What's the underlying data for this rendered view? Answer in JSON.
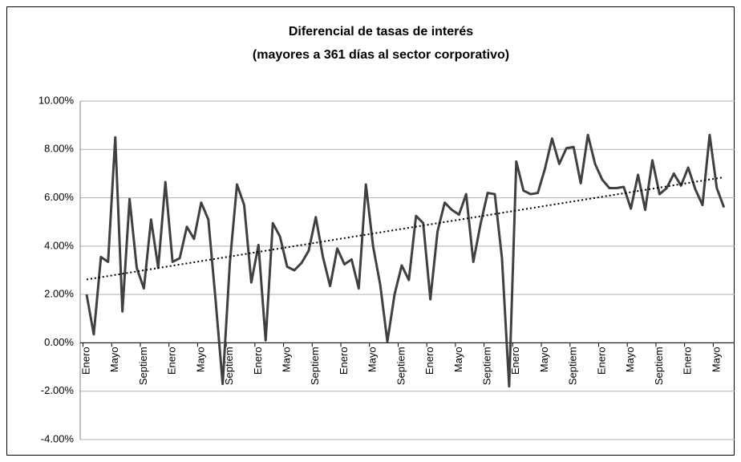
{
  "chart_data": {
    "type": "line",
    "title": "Diferencial de tasas de interés",
    "subtitle": "(mayores a 361 días al sector corporativo)",
    "categories": [
      "Enero",
      null,
      null,
      null,
      "Mayo",
      null,
      null,
      null,
      "Septiem",
      null,
      null,
      null,
      "Enero",
      null,
      null,
      null,
      "Mayo",
      null,
      null,
      null,
      "Septiem",
      null,
      null,
      null,
      "Enero",
      null,
      null,
      null,
      "Mayo",
      null,
      null,
      null,
      "Septiem",
      null,
      null,
      null,
      "Enero",
      null,
      null,
      null,
      "Mayo",
      null,
      null,
      null,
      "Septiem",
      null,
      null,
      null,
      "Enero",
      null,
      null,
      null,
      "Mayo",
      null,
      null,
      null,
      "Septiem",
      null,
      null,
      null,
      "Enero",
      null,
      null,
      null,
      "Mayo",
      null,
      null,
      null,
      "Septiem",
      null,
      null,
      null,
      "Enero",
      null,
      null,
      null,
      "Mayo",
      null,
      null,
      null,
      "Septiem",
      null,
      null,
      null,
      "Enero",
      null,
      null,
      null,
      "Mayo",
      null
    ],
    "values": [
      2.0,
      0.35,
      3.55,
      3.35,
      8.5,
      1.3,
      5.95,
      3.1,
      2.25,
      5.1,
      3.1,
      6.65,
      3.35,
      3.5,
      4.8,
      4.3,
      5.8,
      5.1,
      1.8,
      -1.7,
      3.3,
      6.55,
      5.7,
      2.5,
      4.05,
      0.1,
      4.95,
      4.4,
      3.15,
      3.0,
      3.3,
      3.8,
      5.2,
      3.55,
      2.35,
      3.9,
      3.25,
      3.45,
      2.25,
      6.55,
      4.0,
      2.4,
      0.05,
      2.0,
      3.2,
      2.6,
      5.25,
      4.95,
      1.8,
      4.6,
      5.8,
      5.5,
      5.3,
      6.15,
      3.35,
      4.9,
      6.2,
      6.15,
      3.5,
      -1.8,
      7.5,
      6.3,
      6.15,
      6.2,
      7.2,
      8.45,
      7.4,
      8.05,
      8.1,
      6.6,
      8.6,
      7.4,
      6.75,
      6.4,
      6.4,
      6.45,
      5.55,
      6.95,
      5.5,
      7.55,
      6.15,
      6.4,
      7.0,
      6.5,
      7.25,
      6.35,
      5.7,
      8.6,
      6.4,
      5.6
    ],
    "color": "#404040",
    "trendline": {
      "values": [
        2.62,
        6.85
      ],
      "color": "#000000",
      "style": "dotted"
    },
    "ylim": [
      -4,
      10
    ],
    "yticks": [
      {
        "value": -4,
        "label": "-4.00%"
      },
      {
        "value": -2,
        "label": "-2.00%"
      },
      {
        "value": 0,
        "label": "0.00%"
      },
      {
        "value": 2,
        "label": "2.00%"
      },
      {
        "value": 4,
        "label": "4.00%"
      },
      {
        "value": 6,
        "label": "6.00%"
      },
      {
        "value": 8,
        "label": "8.00%"
      },
      {
        "value": 10,
        "label": "10.00%"
      }
    ],
    "grid": true
  }
}
